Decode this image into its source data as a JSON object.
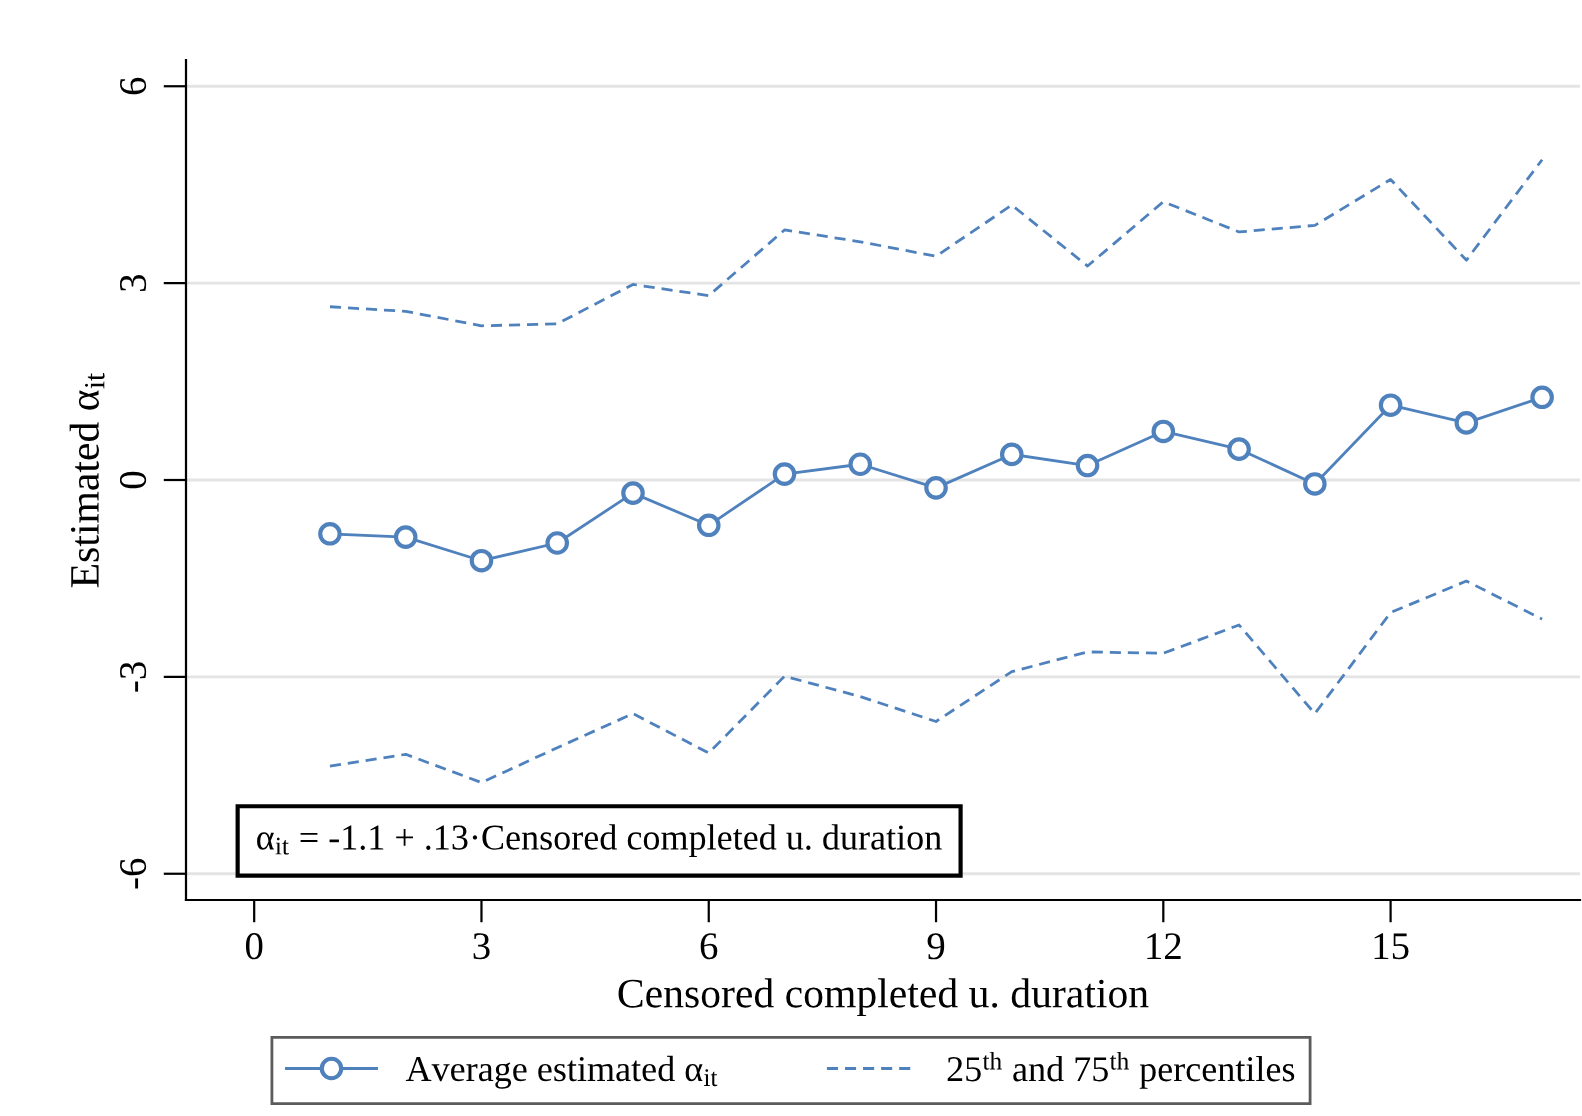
{
  "chart_data": {
    "type": "line",
    "xlabel": "Censored completed u. duration",
    "ylabel": "Estimated α$_{it}$",
    "x": [
      1,
      2,
      3,
      4,
      5,
      6,
      7,
      8,
      9,
      10,
      11,
      12,
      13,
      14,
      15,
      16,
      17
    ],
    "series": [
      {
        "name": "Average estimated α$_{it}$",
        "color": "#4f81bd",
        "marker": "circle",
        "line_style": "solid",
        "values": [
          -0.82,
          -0.87,
          -1.23,
          -0.96,
          -0.2,
          -0.69,
          0.09,
          0.24,
          -0.12,
          0.39,
          0.22,
          0.74,
          0.47,
          -0.06,
          1.14,
          0.87,
          1.26
        ]
      },
      {
        "name": "25$^{th}$ and 75$^{th}$ percentiles",
        "color": "#4f81bd",
        "marker": "none",
        "line_style": "dashed",
        "values": [
          2.64,
          2.57,
          2.35,
          2.38,
          2.98,
          2.81,
          3.81,
          3.63,
          3.41,
          4.19,
          3.26,
          4.24,
          3.78,
          3.88,
          4.58,
          3.35,
          4.88
        ]
      },
      {
        "color": "#4f81bd",
        "marker": "none",
        "line_style": "dashed",
        "values": [
          -4.36,
          -4.18,
          -4.61,
          -4.08,
          -3.56,
          -4.16,
          -2.99,
          -3.3,
          -3.68,
          -2.92,
          -2.62,
          -2.64,
          -2.21,
          -3.56,
          -2.02,
          -1.54,
          -2.12
        ]
      }
    ],
    "xlim": [
      -0.9,
      17.5
    ],
    "ylim": [
      -6.4,
      6.4
    ],
    "xticks": [
      0,
      3,
      6,
      9,
      12,
      15
    ],
    "yticks": [
      -6,
      -3,
      0,
      3,
      6
    ],
    "grid": "y",
    "legend": "bottom",
    "annotations": [
      "α$_{it}$ = -1.1 + .13·Censored completed u. duration"
    ]
  }
}
